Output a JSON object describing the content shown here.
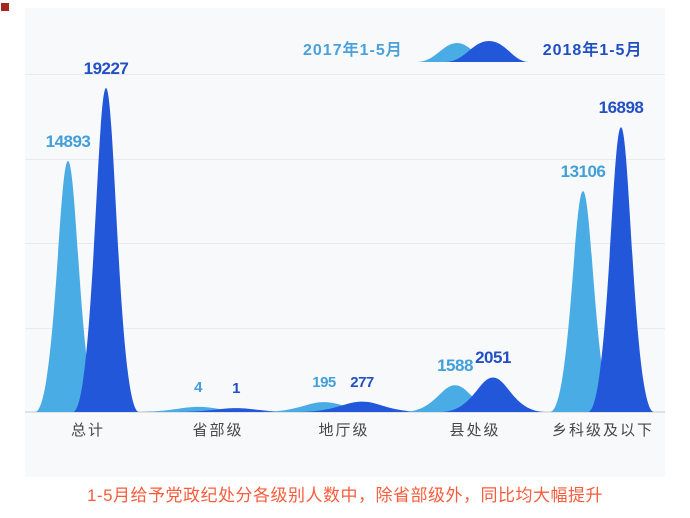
{
  "legend": {
    "left_label": "2017年1-5月",
    "right_label": "2018年1-5月"
  },
  "caption": "1-5月给予党政纪处分各级别人数中，除省部级外，同比均大幅提升",
  "colors": {
    "light_blue": "#4aace4",
    "dark_blue": "#2357d9",
    "light_label": "#429fd9",
    "dark_label": "#2350c5",
    "caption": "#f75c3c",
    "grid": "#e9eaec",
    "axis": "#d8dadc",
    "panel_bg": "#f8f9fa",
    "category_text": "#474747"
  },
  "chart_data": {
    "type": "area",
    "categories": [
      "总计",
      "省部级",
      "地厅级",
      "县处级",
      "乡科级及以下"
    ],
    "series": [
      {
        "name": "2017年1-5月",
        "values": [
          14893,
          4,
          195,
          1588,
          13106
        ],
        "color": "#4aace4"
      },
      {
        "name": "2018年1-5月",
        "values": [
          19227,
          1,
          277,
          2051,
          16898
        ],
        "color": "#2357d9"
      }
    ],
    "ylim": [
      0,
      20000
    ],
    "gridlines": [
      0,
      5000,
      10000,
      15000,
      20000
    ],
    "grid": "horizontal",
    "legend_position": "top-right",
    "value_labels": true,
    "xlabel": "",
    "ylabel": ""
  }
}
